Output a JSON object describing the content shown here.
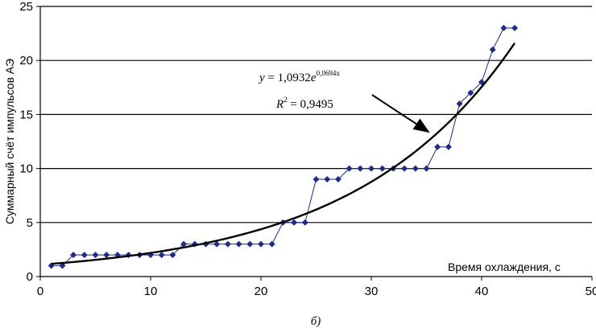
{
  "chart_data": {
    "type": "scatter",
    "title": "",
    "xlabel": "Время охлаждения, с",
    "ylabel": "Суммарный счёт импульсов АЭ",
    "xlim": [
      0,
      50
    ],
    "ylim": [
      0,
      25
    ],
    "x_ticks": [
      0,
      10,
      20,
      30,
      40,
      50
    ],
    "y_ticks": [
      0,
      5,
      10,
      15,
      20,
      25
    ],
    "grid": "horizontal",
    "series": [
      {
        "color": "#1f2a8a",
        "marker": "diamond",
        "x": [
          1,
          2,
          3,
          4,
          5,
          6,
          7,
          8,
          9,
          10,
          11,
          12,
          13,
          14,
          15,
          16,
          17,
          18,
          19,
          20,
          21,
          22,
          23,
          24,
          25,
          26,
          27,
          28,
          29,
          30,
          31,
          32,
          33,
          34,
          35,
          36,
          37,
          38,
          39,
          40,
          41,
          42,
          43
        ],
        "y": [
          1,
          1,
          2,
          2,
          2,
          2,
          2,
          2,
          2,
          2,
          2,
          2,
          3,
          3,
          3,
          3,
          3,
          3,
          3,
          3,
          3,
          5,
          5,
          5,
          9,
          9,
          9,
          10,
          10,
          10,
          10,
          10,
          10,
          10,
          10,
          12,
          12,
          16,
          17,
          18,
          21,
          23,
          23
        ]
      }
    ],
    "trendline": {
      "type": "exponential",
      "a": 1.0932,
      "b": 0.0694,
      "x_range": [
        1,
        43
      ],
      "color": "#000000"
    },
    "annotation": {
      "y_var": "y",
      "equals": " = ",
      "coef": "1,0932",
      "base": "e",
      "exponent": "0,0694x",
      "r_var": "R",
      "r_sup": "2",
      "r_value": " = 0,9495"
    },
    "caption": "б)"
  }
}
